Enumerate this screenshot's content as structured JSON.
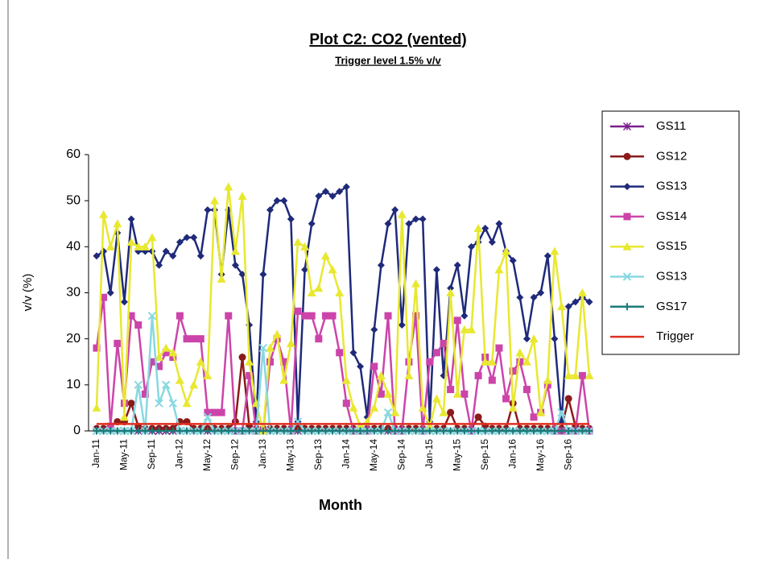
{
  "chart_data": {
    "type": "line",
    "title": "Plot C2: CO2 (vented)",
    "subtitle": "Trigger level 1.5% v/v",
    "x_label": "Month",
    "y_label": "v/v (%)",
    "categories": [
      "Jan-11",
      null,
      null,
      null,
      "May-11",
      null,
      null,
      null,
      "Sep-11",
      null,
      null,
      null,
      "Jan-12",
      null,
      null,
      null,
      "May-12",
      null,
      null,
      null,
      "Sep-12",
      null,
      null,
      null,
      "Jan-13",
      null,
      null,
      null,
      "May-13",
      null,
      null,
      null,
      "Sep-13",
      null,
      null,
      null,
      "Jan-14",
      null,
      null,
      null,
      "May-14",
      null,
      null,
      null,
      "Sep-14",
      null,
      null,
      null,
      "Jan-15",
      null,
      null,
      null,
      "May-15",
      null,
      null,
      null,
      "Sep-15",
      null,
      null,
      null,
      "Jan-16",
      null,
      null,
      null,
      "May-16",
      null,
      null,
      null,
      "Sep-16",
      null,
      null,
      null
    ],
    "ylim": [
      0,
      60
    ],
    "yticks": [
      0,
      10,
      20,
      30,
      40,
      50,
      60
    ],
    "grid": false,
    "legend": "right",
    "series": [
      {
        "name": "GS11",
        "color": "#7a1f8c",
        "marker": "star",
        "values": [
          0,
          0,
          0,
          0,
          0,
          0,
          0,
          0,
          0,
          0,
          0,
          0,
          0,
          0,
          0,
          0,
          0,
          0,
          0,
          0,
          0,
          0,
          0,
          0,
          0,
          0,
          0,
          0,
          0,
          0,
          0,
          0,
          0,
          0,
          0,
          0,
          0,
          0,
          0,
          0,
          0,
          0,
          0,
          0,
          0,
          0,
          0,
          0,
          0,
          0,
          0,
          0,
          0,
          0,
          0,
          0,
          0,
          0,
          0,
          0,
          0,
          0,
          0,
          0,
          0,
          0,
          0,
          0,
          0,
          0,
          0,
          0
        ]
      },
      {
        "name": "GS12",
        "color": "#8b1a1a",
        "marker": "circle",
        "values": [
          0.5,
          0.5,
          1,
          2,
          2,
          6,
          1,
          0.5,
          0.5,
          0.5,
          0.5,
          0.5,
          2,
          2,
          0.5,
          0.5,
          0.5,
          0.5,
          0.5,
          0.5,
          2,
          16,
          1,
          0.5,
          0.5,
          0.5,
          0.5,
          0.5,
          0.5,
          0.5,
          0.5,
          0.5,
          0.5,
          0.5,
          0.5,
          0.5,
          0.5,
          0.5,
          0.5,
          0.5,
          0.5,
          0.5,
          0.5,
          0.5,
          0.5,
          0.5,
          0.5,
          0.5,
          0.5,
          0.5,
          0.5,
          4,
          0.5,
          0.5,
          0.5,
          3,
          1,
          0.5,
          0.5,
          0.5,
          6,
          0.5,
          0.5,
          0.5,
          0.5,
          0.5,
          0.5,
          0.5,
          7,
          1,
          0.5,
          0.5
        ]
      },
      {
        "name": "GS13",
        "color": "#1f2a7a",
        "marker": "diamond",
        "values": [
          38,
          39,
          30,
          43,
          28,
          46,
          39,
          39,
          39,
          36,
          39,
          38,
          41,
          42,
          42,
          38,
          48,
          48,
          34,
          48,
          36,
          34,
          23,
          2,
          34,
          48,
          50,
          50,
          46,
          2,
          35,
          45,
          51,
          52,
          51,
          52,
          53,
          17,
          14,
          3,
          22,
          36,
          45,
          48,
          23,
          45,
          46,
          46,
          2,
          35,
          12,
          31,
          36,
          25,
          40,
          41,
          44,
          41,
          45,
          39,
          37,
          29,
          20,
          29,
          30,
          38,
          20,
          2,
          27,
          28,
          29,
          28
        ]
      },
      {
        "name": "GS14",
        "color": "#cc44aa",
        "marker": "square",
        "values": [
          18,
          29,
          1,
          19,
          6,
          25,
          23,
          8,
          15,
          14,
          17,
          16,
          25,
          20,
          20,
          20,
          4,
          4,
          4,
          25,
          0,
          0,
          12,
          0,
          0,
          15,
          20,
          15,
          0,
          26,
          25,
          25,
          20,
          25,
          25,
          17,
          6,
          0,
          0,
          0,
          14,
          8,
          25,
          0,
          0,
          15,
          25,
          0,
          15,
          17,
          19,
          9,
          24,
          8,
          0,
          12,
          16,
          11,
          18,
          7,
          13,
          15,
          9,
          3,
          4,
          10,
          0,
          0,
          0,
          0,
          12,
          0
        ]
      },
      {
        "name": "GS15",
        "color": "#e8e830",
        "marker": "triangle",
        "values": [
          5,
          47,
          40,
          45,
          3,
          41,
          40,
          40,
          42,
          16,
          18,
          17,
          11,
          6,
          10,
          15,
          12,
          50,
          33,
          53,
          39,
          51,
          15,
          6,
          0,
          18,
          21,
          11,
          19,
          41,
          40,
          30,
          31,
          38,
          35,
          30,
          11,
          5,
          1,
          2,
          5,
          12,
          8,
          4,
          47,
          12,
          32,
          5,
          1,
          7,
          4,
          30,
          8,
          22,
          22,
          44,
          15,
          15,
          35,
          39,
          5,
          17,
          15,
          20,
          4,
          11,
          39,
          27,
          12,
          12,
          30,
          12
        ]
      },
      {
        "name": "GS13",
        "color": "#88d8e0",
        "marker": "cross",
        "values": [
          0,
          0,
          0,
          0,
          0,
          0,
          10,
          0,
          25,
          6,
          10,
          6,
          0,
          0,
          0,
          0,
          3,
          0,
          0,
          0,
          0,
          0,
          0,
          0,
          18,
          0,
          0,
          0,
          0,
          2,
          0,
          0,
          0,
          0,
          0,
          0,
          0,
          0,
          0,
          0,
          0,
          0,
          4,
          0,
          0,
          0,
          0,
          0,
          0,
          0,
          0,
          0,
          0,
          0,
          0,
          0,
          0,
          0,
          0,
          0,
          0,
          0,
          0,
          0,
          0,
          0,
          0,
          4,
          0,
          0,
          0,
          0
        ]
      },
      {
        "name": "GS17",
        "color": "#1a7a7a",
        "marker": "plus",
        "values": [
          0,
          0,
          0,
          0,
          0,
          0,
          0,
          0,
          0,
          0,
          0,
          0,
          0,
          0,
          0,
          0,
          0,
          0,
          0,
          0,
          0,
          0,
          0,
          0,
          0,
          0,
          0,
          0,
          0,
          0,
          0,
          0,
          0,
          0,
          0,
          0,
          0,
          0,
          0,
          0,
          0,
          0,
          0,
          0,
          0,
          0,
          0,
          0,
          0,
          0,
          0,
          0,
          0,
          0,
          0,
          0,
          0,
          0,
          0,
          0,
          0,
          0,
          0,
          0,
          0,
          0,
          0,
          0,
          0,
          0,
          0,
          0
        ]
      },
      {
        "name": "Trigger",
        "color": "#e03020",
        "marker": "none",
        "values": [
          1.5,
          1.5,
          1.5,
          1.5,
          1.5,
          1.5,
          1.5,
          1.5,
          1.5,
          1.5,
          1.5,
          1.5,
          1.5,
          1.5,
          1.5,
          1.5,
          1.5,
          1.5,
          1.5,
          1.5,
          1.5,
          1.5,
          1.5,
          1.5,
          1.5,
          1.5,
          1.5,
          1.5,
          1.5,
          1.5,
          1.5,
          1.5,
          1.5,
          1.5,
          1.5,
          1.5,
          1.5,
          1.5,
          1.5,
          1.5,
          1.5,
          1.5,
          1.5,
          1.5,
          1.5,
          1.5,
          1.5,
          1.5,
          1.5,
          1.5,
          1.5,
          1.5,
          1.5,
          1.5,
          1.5,
          1.5,
          1.5,
          1.5,
          1.5,
          1.5,
          1.5,
          1.5,
          1.5,
          1.5,
          1.5,
          1.5,
          1.5,
          1.5,
          1.5,
          1.5,
          1.5,
          1.5
        ]
      }
    ]
  }
}
